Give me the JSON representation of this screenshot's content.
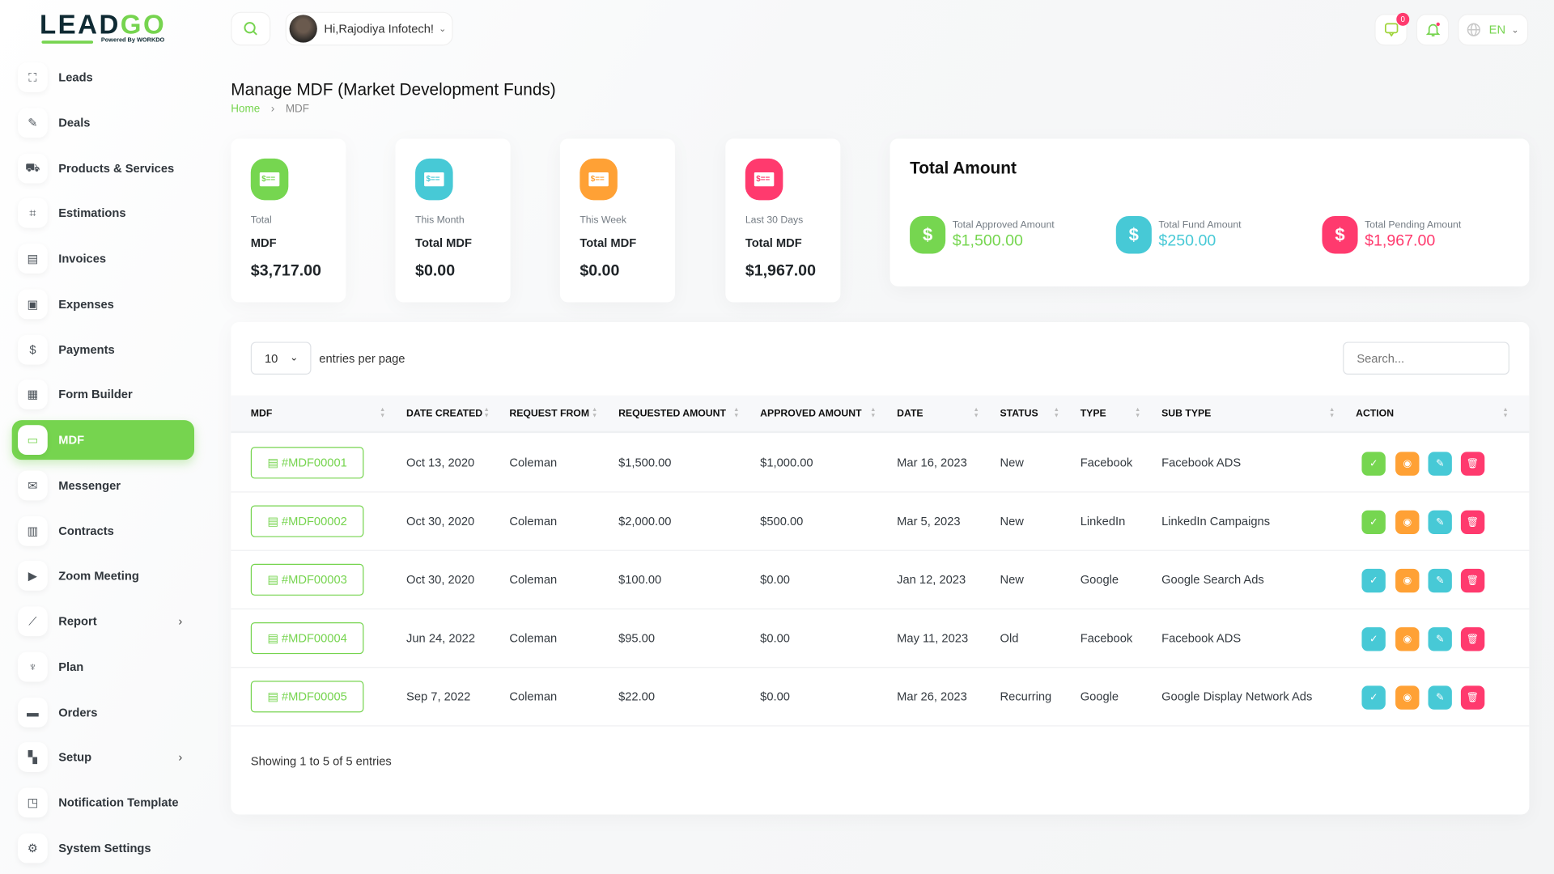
{
  "brand": {
    "name": "LEADGO",
    "powered_by": "Powered By WORKDO"
  },
  "header": {
    "greeting": "Hi,Rajodiya Infotech!",
    "message_count": "0",
    "language": "EN"
  },
  "sidebar": {
    "items": [
      {
        "label": "Leads",
        "icon": "leads-icon"
      },
      {
        "label": "Deals",
        "icon": "rocket-icon"
      },
      {
        "label": "Products & Services",
        "icon": "products-icon"
      },
      {
        "label": "Estimations",
        "icon": "estimation-icon"
      },
      {
        "label": "Invoices",
        "icon": "invoice-icon"
      },
      {
        "label": "Expenses",
        "icon": "expense-icon"
      },
      {
        "label": "Payments",
        "icon": "payment-icon"
      },
      {
        "label": "Form Builder",
        "icon": "form-icon"
      },
      {
        "label": "MDF",
        "icon": "cash-icon",
        "active": true
      },
      {
        "label": "Messenger",
        "icon": "chat-icon"
      },
      {
        "label": "Contracts",
        "icon": "contract-icon"
      },
      {
        "label": "Zoom Meeting",
        "icon": "video-icon"
      },
      {
        "label": "Report",
        "icon": "chart-icon",
        "submenu": true
      },
      {
        "label": "Plan",
        "icon": "trophy-icon"
      },
      {
        "label": "Orders",
        "icon": "card-icon"
      },
      {
        "label": "Setup",
        "icon": "grid-icon",
        "submenu": true
      },
      {
        "label": "Notification Template",
        "icon": "notification-icon"
      },
      {
        "label": "System Settings",
        "icon": "gear-icon"
      }
    ]
  },
  "page": {
    "title": "Manage MDF (Market Development Funds)",
    "breadcrumb": [
      "Home",
      "MDF"
    ]
  },
  "stats": [
    {
      "label1": "Total",
      "label2": "MDF",
      "value": "$3,717.00",
      "color": "#76d650"
    },
    {
      "label1": "This Month",
      "label2": "Total MDF",
      "value": "$0.00",
      "color": "#47c9d6"
    },
    {
      "label1": "This Week",
      "label2": "Total MDF",
      "value": "$0.00",
      "color": "#ffa135"
    },
    {
      "label1": "Last 30 Days",
      "label2": "Total MDF",
      "value": "$1,967.00",
      "color": "#ff3a6e"
    }
  ],
  "total_amount": {
    "title": "Total Amount",
    "items": [
      {
        "label": "Total Approved Amount",
        "value": "$1,500.00",
        "color": "#76d650"
      },
      {
        "label": "Total Fund Amount",
        "value": "$250.00",
        "color": "#47c9d6"
      },
      {
        "label": "Total Pending Amount",
        "value": "$1,967.00",
        "color": "#ff3a6e"
      }
    ]
  },
  "table": {
    "entries_value": "10",
    "entries_label": "entries per page",
    "search_placeholder": "Search...",
    "columns": [
      "MDF",
      "DATE CREATED",
      "REQUEST FROM",
      "REQUESTED AMOUNT",
      "APPROVED AMOUNT",
      "DATE",
      "STATUS",
      "TYPE",
      "SUB TYPE",
      "ACTION"
    ],
    "rows": [
      [
        "#MDF00001",
        "Oct 13, 2020",
        "Coleman",
        "$1,500.00",
        "$1,000.00",
        "Mar 16, 2023",
        "New",
        "Facebook",
        "Facebook ADS"
      ],
      [
        "#MDF00002",
        "Oct 30, 2020",
        "Coleman",
        "$2,000.00",
        "$500.00",
        "Mar 5, 2023",
        "New",
        "LinkedIn",
        "LinkedIn Campaigns"
      ],
      [
        "#MDF00003",
        "Oct 30, 2020",
        "Coleman",
        "$100.00",
        "$0.00",
        "Jan 12, 2023",
        "New",
        "Google",
        "Google Search Ads"
      ],
      [
        "#MDF00004",
        "Jun 24, 2022",
        "Coleman",
        "$95.00",
        "$0.00",
        "May 11, 2023",
        "Old",
        "Facebook",
        "Facebook ADS"
      ],
      [
        "#MDF00005",
        "Sep 7, 2022",
        "Coleman",
        "$22.00",
        "$0.00",
        "Mar 26, 2023",
        "Recurring",
        "Google",
        "Google Display Network Ads"
      ]
    ],
    "row_first_action": [
      "approved",
      "approved",
      "pending",
      "pending",
      "pending"
    ],
    "footer": "Showing 1 to 5 of 5 entries"
  }
}
